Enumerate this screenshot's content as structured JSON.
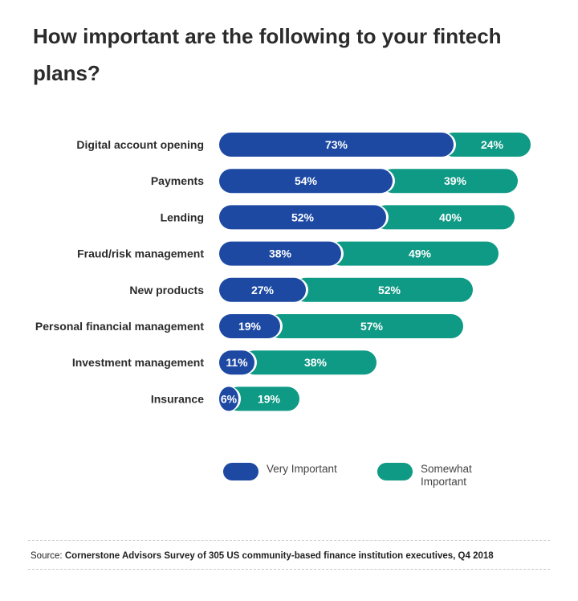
{
  "title": "How important are the following to your fintech plans?",
  "colors": {
    "very": "#1d49a3",
    "somewhat": "#0e9a85"
  },
  "legend": {
    "very": "Very Important",
    "somewhat": "Somewhat Important"
  },
  "source": {
    "prefix": "Source: ",
    "text": "Cornerstone Advisors Survey of 305 US community-based finance institution executives, Q4 2018"
  },
  "chart_data": {
    "type": "bar",
    "orientation": "horizontal",
    "stacked": true,
    "categories": [
      "Digital account opening",
      "Payments",
      "Lending",
      "Fraud/risk management",
      "New products",
      "Personal financial management",
      "Investment management",
      "Insurance"
    ],
    "series": [
      {
        "name": "Very Important",
        "values": [
          73,
          54,
          52,
          38,
          27,
          19,
          11,
          6
        ]
      },
      {
        "name": "Somewhat Important",
        "values": [
          24,
          39,
          40,
          49,
          52,
          57,
          38,
          19
        ]
      }
    ],
    "value_labels": [
      [
        "73%",
        "54%",
        "52%",
        "38%",
        "27%",
        "19%",
        "11%",
        "6%"
      ],
      [
        "24%",
        "39%",
        "40%",
        "49%",
        "52%",
        "57%",
        "38%",
        "19%"
      ]
    ],
    "unit": "%",
    "legend_position": "bottom"
  }
}
